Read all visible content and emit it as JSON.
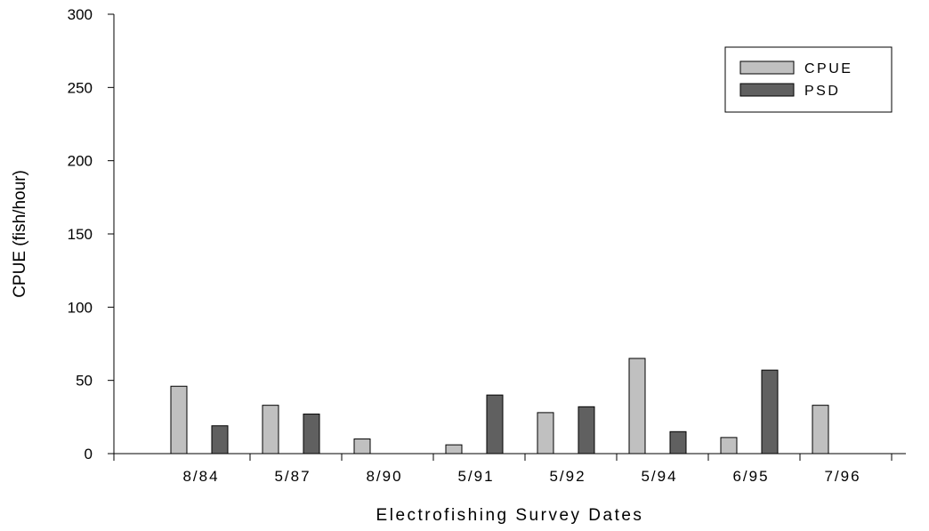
{
  "chart_data": {
    "type": "bar",
    "categories": [
      "8/84",
      "5/87",
      "8/90",
      "5/91",
      "5/92",
      "5/94",
      "6/95",
      "7/96"
    ],
    "series": [
      {
        "name": "CPUE",
        "values": [
          46,
          33,
          10,
          6,
          28,
          65,
          11,
          33
        ],
        "color": "#c0c0c0"
      },
      {
        "name": "PSD",
        "values": [
          19,
          27,
          0,
          40,
          32,
          15,
          57,
          0
        ],
        "color": "#606060"
      }
    ],
    "xlabel": "Electrofishing Survey Dates",
    "ylabel": "CPUE (fish/hour)",
    "ylim": [
      0,
      300
    ],
    "yticks": [
      0,
      50,
      100,
      150,
      200,
      250,
      300
    ],
    "grid": false,
    "legend": "top-right"
  }
}
